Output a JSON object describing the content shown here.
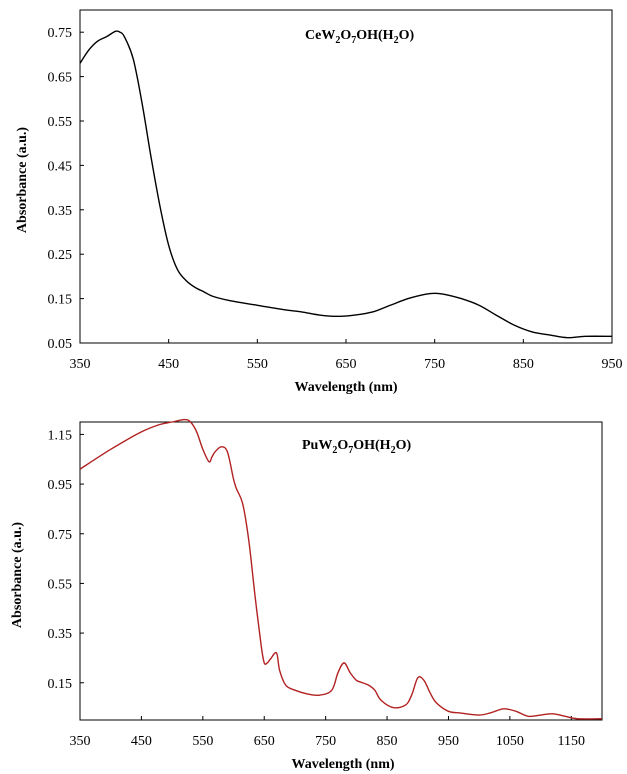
{
  "chart_data": [
    {
      "type": "line",
      "title_parts": {
        "p1": "CeW",
        "s1": "2",
        "p2": "O",
        "s2": "7",
        "p3": "OH(H",
        "s3": "2",
        "p4": "O)"
      },
      "xlabel": "Wavelength (nm)",
      "ylabel": "Absorbance (a.u.)",
      "xlim": [
        350,
        950
      ],
      "ylim": [
        0.05,
        0.8
      ],
      "xticks": [
        350,
        450,
        550,
        650,
        750,
        850,
        950
      ],
      "yticks": [
        "0.05",
        "0.15",
        "0.25",
        "0.35",
        "0.45",
        "0.55",
        "0.65",
        "0.75"
      ],
      "grid": false,
      "series": [
        {
          "color": "#000000",
          "x": [
            350,
            360,
            370,
            380,
            390,
            395,
            400,
            410,
            420,
            430,
            440,
            450,
            460,
            470,
            480,
            490,
            500,
            520,
            550,
            580,
            600,
            620,
            640,
            660,
            680,
            700,
            720,
            740,
            750,
            760,
            780,
            800,
            820,
            840,
            860,
            880,
            900,
            920,
            950
          ],
          "y": [
            0.68,
            0.71,
            0.73,
            0.74,
            0.752,
            0.75,
            0.74,
            0.69,
            0.59,
            0.47,
            0.36,
            0.27,
            0.215,
            0.19,
            0.175,
            0.165,
            0.155,
            0.145,
            0.135,
            0.125,
            0.12,
            0.113,
            0.11,
            0.113,
            0.12,
            0.135,
            0.15,
            0.16,
            0.162,
            0.16,
            0.15,
            0.135,
            0.112,
            0.09,
            0.075,
            0.068,
            0.062,
            0.065,
            0.065
          ]
        }
      ]
    },
    {
      "type": "line",
      "title_parts": {
        "p1": "PuW",
        "s1": "2",
        "p2": "O",
        "s2": "7",
        "p3": "OH(H",
        "s3": "2",
        "p4": "O)"
      },
      "xlabel": "Wavelength (nm)",
      "ylabel": "Absorbance (a.u.)",
      "xlim": [
        350,
        1200
      ],
      "ylim": [
        0,
        1.2
      ],
      "xticks": [
        350,
        450,
        550,
        650,
        750,
        850,
        950,
        1050,
        1150
      ],
      "yticks": [
        "0.15",
        "0.35",
        "0.55",
        "0.75",
        "0.95",
        "1.15"
      ],
      "grid": false,
      "series": [
        {
          "color": "#b22222",
          "x": [
            350,
            400,
            450,
            480,
            500,
            520,
            530,
            540,
            550,
            560,
            565,
            570,
            580,
            590,
            600,
            605,
            615,
            625,
            635,
            645,
            650,
            655,
            660,
            670,
            675,
            685,
            700,
            720,
            740,
            760,
            770,
            780,
            790,
            800,
            810,
            820,
            830,
            840,
            860,
            880,
            890,
            900,
            910,
            920,
            930,
            950,
            970,
            1000,
            1020,
            1040,
            1060,
            1080,
            1100,
            1120,
            1140,
            1160,
            1200
          ],
          "y": [
            1.01,
            1.09,
            1.16,
            1.19,
            1.2,
            1.21,
            1.2,
            1.16,
            1.09,
            1.04,
            1.06,
            1.08,
            1.1,
            1.08,
            0.97,
            0.93,
            0.87,
            0.72,
            0.5,
            0.3,
            0.23,
            0.23,
            0.245,
            0.27,
            0.2,
            0.14,
            0.12,
            0.105,
            0.1,
            0.12,
            0.19,
            0.23,
            0.19,
            0.16,
            0.15,
            0.14,
            0.12,
            0.08,
            0.05,
            0.06,
            0.1,
            0.17,
            0.16,
            0.11,
            0.07,
            0.035,
            0.028,
            0.02,
            0.03,
            0.045,
            0.035,
            0.015,
            0.02,
            0.025,
            0.015,
            0.005,
            0.005
          ]
        }
      ]
    }
  ]
}
